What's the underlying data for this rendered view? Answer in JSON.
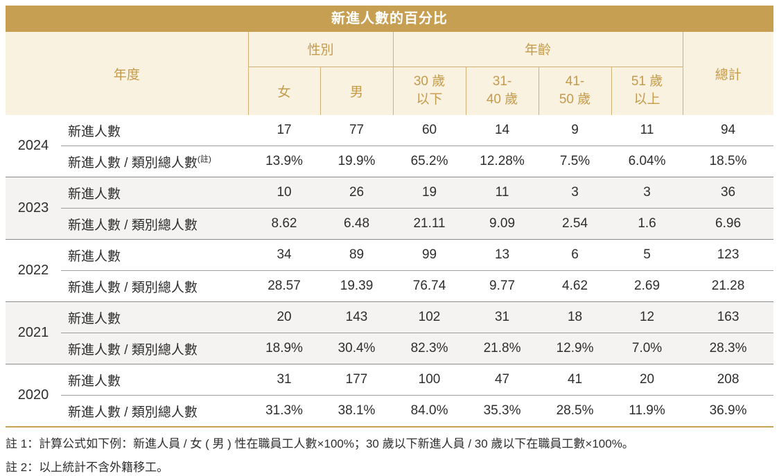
{
  "title": "新進人數的百分比",
  "header": {
    "year": "年度",
    "gender_group": "性別",
    "age_group": "年齡",
    "total": "總計",
    "gender_cols": [
      "女",
      "男"
    ],
    "age_cols": [
      {
        "l1": "30 歲",
        "l2": "以下"
      },
      {
        "l1": "31-",
        "l2": "40 歲"
      },
      {
        "l1": "41-",
        "l2": "50 歲"
      },
      {
        "l1": "51 歲",
        "l2": "以上"
      }
    ]
  },
  "labels": {
    "count": "新進人數",
    "ratio": "新進人數 / 類別總人數",
    "ratio_sup": "(註)"
  },
  "years": [
    {
      "year": "2024",
      "has_note": true,
      "count": [
        "17",
        "77",
        "60",
        "14",
        "9",
        "11",
        "94"
      ],
      "ratio": [
        "13.9%",
        "19.9%",
        "65.2%",
        "12.28%",
        "7.5%",
        "6.04%",
        "18.5%"
      ]
    },
    {
      "year": "2023",
      "has_note": false,
      "count": [
        "10",
        "26",
        "19",
        "11",
        "3",
        "3",
        "36"
      ],
      "ratio": [
        "8.62",
        "6.48",
        "21.11",
        "9.09",
        "2.54",
        "1.6",
        "6.96"
      ]
    },
    {
      "year": "2022",
      "has_note": false,
      "count": [
        "34",
        "89",
        "99",
        "13",
        "6",
        "5",
        "123"
      ],
      "ratio": [
        "28.57",
        "19.39",
        "76.74",
        "9.77",
        "4.62",
        "2.69",
        "21.28"
      ]
    },
    {
      "year": "2021",
      "has_note": false,
      "count": [
        "20",
        "143",
        "102",
        "31",
        "18",
        "12",
        "163"
      ],
      "ratio": [
        "18.9%",
        "30.4%",
        "82.3%",
        "21.8%",
        "12.9%",
        "7.0%",
        "28.3%"
      ]
    },
    {
      "year": "2020",
      "has_note": false,
      "count": [
        "31",
        "177",
        "100",
        "47",
        "41",
        "20",
        "208"
      ],
      "ratio": [
        "31.3%",
        "38.1%",
        "84.0%",
        "35.3%",
        "28.5%",
        "11.9%",
        "36.9%"
      ]
    }
  ],
  "notes": [
    "註 1：計算公式如下例：新進人員 / 女 ( 男 ) 性在職員工人數×100%；30 歲以下新進人員 / 30 歲以下在職員工數×100%。",
    "註 2：以上統計不含外籍移工。"
  ],
  "colors": {
    "title_bg": "#C79F53",
    "title_text": "#FFFFFF",
    "header_bg": "#FAF2E0",
    "header_text": "#C49A4B",
    "header_line": "#D2B176",
    "body_text": "#2E2E2E",
    "band_alt": "#F4F3F1",
    "group_divider": "#8A8A8A",
    "inner_divider": "#9E9E9E",
    "bottom_line": "#C9A254"
  }
}
